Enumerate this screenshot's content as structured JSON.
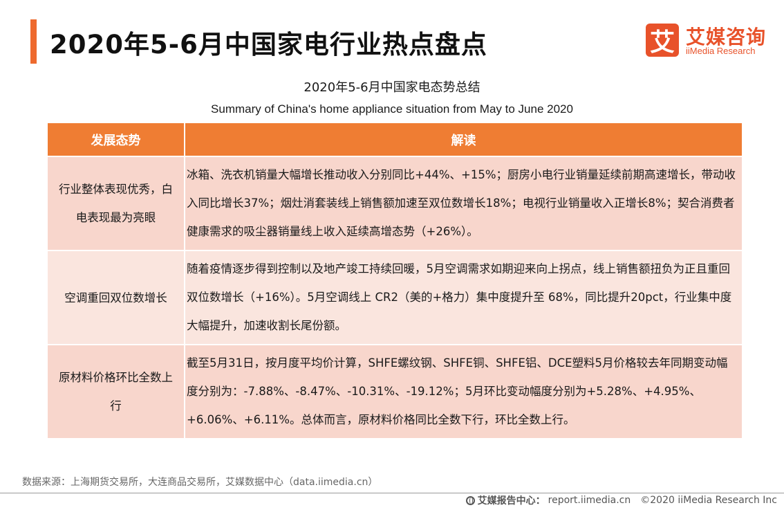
{
  "header": {
    "title": "2020年5-6月中国家电行业热点盘点",
    "logo_mark": "艾",
    "logo_cn": "艾媒咨询",
    "logo_en": "iiMedia Research"
  },
  "subtitle": {
    "cn": "2020年5-6月中国家电态势总结",
    "en": "Summary of China's home appliance situation from May to June 2020"
  },
  "table": {
    "headers": [
      "发展态势",
      "解读"
    ],
    "rows": [
      {
        "trend": "行业整体表现优秀，白电表现最为亮眼",
        "desc": "冰箱、洗衣机销量大幅增长推动收入分别同比+44%、+15%；厨房小电行业销量延续前期高速增长，带动收入同比增长37%；烟灶消套装线上销售额加速至双位数增长18%；电视行业销量收入正增长8%；契合消费者健康需求的吸尘器销量线上收入延续高增态势（+26%）。"
      },
      {
        "trend": "空调重回双位数增长",
        "desc": "随着疫情逐步得到控制以及地产竣工持续回暖，5月空调需求如期迎来向上拐点，线上销售额扭负为正且重回双位数增长（+16%）。5月空调线上 CR2（美的+格力）集中度提升至 68%，同比提升20pct，行业集中度大幅提升，加速收割长尾份额。"
      },
      {
        "trend": "原材料价格环比全数上行",
        "desc": "截至5月31日，按月度平均价计算，SHFE螺纹钢、SHFE铜、SHFE铝、DCE塑料5月价格较去年同期变动幅度分别为：-7.88%、-8.47%、-10.31%、-19.12%；5月环比变动幅度分别为+5.28%、+4.95%、+6.06%、+6.11%。总体而言，原材料价格同比全数下行，环比全数上行。"
      }
    ]
  },
  "source": "数据来源：上海期货交易所，大连商品交易所，艾媒数据中心（data.iimedia.cn）",
  "footer": {
    "label": "艾媒报告中心：",
    "url": "report.iimedia.cn",
    "copyright": "©2020  iiMedia Research  Inc"
  },
  "colors": {
    "accent": "#ee6a2e",
    "header_bg": "#ef7d33",
    "row_dark": "#f8d6cc",
    "row_light": "#fae5de"
  }
}
